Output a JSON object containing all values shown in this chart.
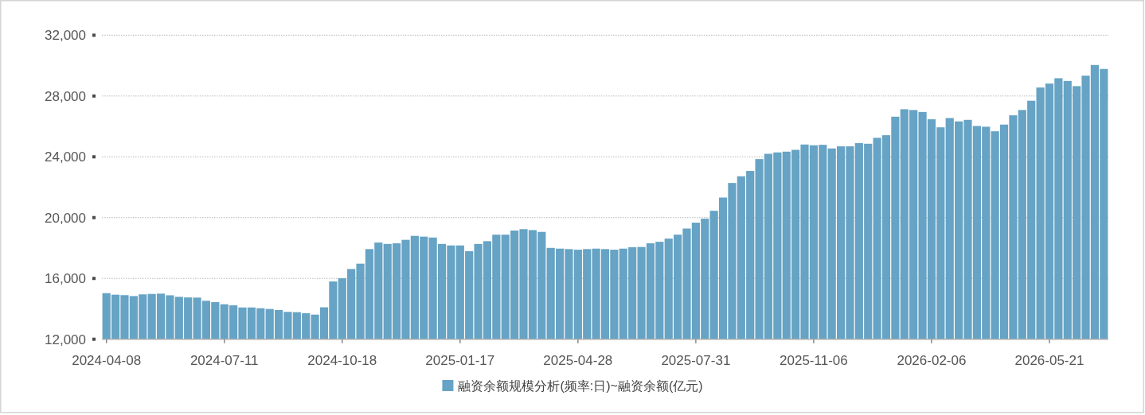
{
  "chart_data": {
    "type": "bar",
    "categories": [
      "2024-04-08",
      null,
      null,
      null,
      null,
      null,
      null,
      null,
      null,
      null,
      null,
      null,
      null,
      "2024-07-11",
      null,
      null,
      null,
      null,
      null,
      null,
      null,
      null,
      null,
      null,
      null,
      null,
      "2024-10-18",
      null,
      null,
      null,
      null,
      null,
      null,
      null,
      null,
      null,
      null,
      null,
      null,
      "2025-01-17",
      null,
      null,
      null,
      null,
      null,
      null,
      null,
      null,
      null,
      null,
      null,
      null,
      "2025-04-28",
      null,
      null,
      null,
      null,
      null,
      null,
      null,
      null,
      null,
      null,
      null,
      null,
      "2025-07-31",
      null,
      null,
      null,
      null,
      null,
      null,
      null,
      null,
      null,
      null,
      null,
      null,
      "2025-11-06",
      null,
      null,
      null,
      null,
      null,
      null,
      null,
      null,
      null,
      null,
      null,
      null,
      "2026-02-06",
      null,
      null,
      null,
      null,
      null,
      null,
      null,
      null,
      null,
      null,
      null,
      null,
      "2026-05-21",
      null,
      null,
      null,
      null,
      null,
      null
    ],
    "series": [
      {
        "name": "融资余额规模分析(频率:日)~融资余额(亿元)",
        "color": "#66a3c4",
        "values": [
          15030,
          14930,
          14900,
          14840,
          14950,
          14980,
          15000,
          14890,
          14790,
          14750,
          14740,
          14530,
          14440,
          14300,
          14230,
          14090,
          14090,
          14040,
          13990,
          13920,
          13800,
          13780,
          13710,
          13620,
          14100,
          15800,
          16010,
          16620,
          16970,
          17930,
          18360,
          18270,
          18310,
          18540,
          18800,
          18750,
          18690,
          18270,
          18170,
          18170,
          17790,
          18270,
          18450,
          18880,
          18880,
          19150,
          19240,
          19180,
          19060,
          18010,
          17960,
          17930,
          17890,
          17930,
          17960,
          17930,
          17890,
          17960,
          18050,
          18070,
          18310,
          18410,
          18620,
          18880,
          19280,
          19670,
          19930,
          20450,
          21320,
          22280,
          22720,
          23070,
          23850,
          24200,
          24290,
          24340,
          24460,
          24810,
          24760,
          24790,
          24550,
          24690,
          24690,
          24900,
          24860,
          25250,
          25420,
          26640,
          27130,
          27080,
          26950,
          26470,
          25940,
          26550,
          26330,
          26430,
          26030,
          25980,
          25680,
          26120,
          26730,
          27080,
          27690,
          28560,
          28820,
          29170,
          28990,
          28650,
          29340,
          30040,
          29780
        ]
      }
    ],
    "ylim": [
      12000,
      32000
    ],
    "yticks": [
      {
        "value": 12000,
        "label": "12,000"
      },
      {
        "value": 16000,
        "label": "16,000"
      },
      {
        "value": 20000,
        "label": "20,000"
      },
      {
        "value": 24000,
        "label": "24,000"
      },
      {
        "value": 28000,
        "label": "28,000"
      },
      {
        "value": 32000,
        "label": "32,000"
      }
    ],
    "grid": "y",
    "legend": "bottom"
  }
}
